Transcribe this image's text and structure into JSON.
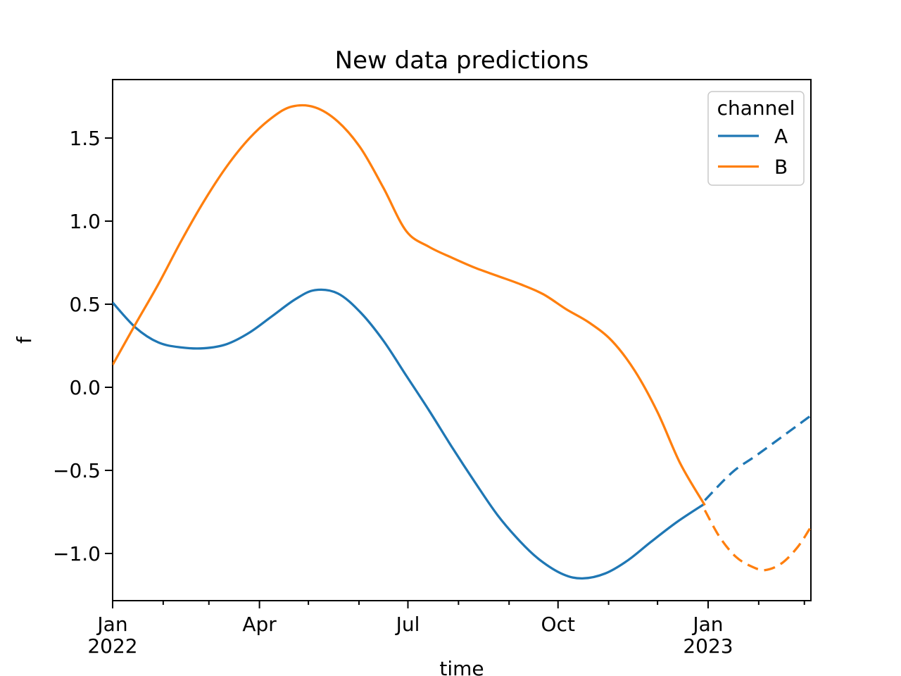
{
  "chart_data": {
    "type": "line",
    "title": "New data predictions",
    "xlabel": "time",
    "ylabel": "f",
    "grid": false,
    "x_unit": "days since Jan 1 2022",
    "xlim_days": [
      0,
      428
    ],
    "ylim": [
      -1.284,
      1.852
    ],
    "x_major_ticks": [
      {
        "day": 0,
        "lines": [
          "Jan",
          "2022"
        ]
      },
      {
        "day": 90,
        "lines": [
          "Apr"
        ]
      },
      {
        "day": 181,
        "lines": [
          "Jul"
        ]
      },
      {
        "day": 273,
        "lines": [
          "Oct"
        ]
      },
      {
        "day": 365,
        "lines": [
          "Jan",
          "2023"
        ]
      }
    ],
    "x_minor_tick_days": [
      31,
      59,
      120,
      151,
      212,
      243,
      304,
      334,
      396,
      424
    ],
    "y_ticks": [
      {
        "value": 1.5,
        "label": "1.5"
      },
      {
        "value": 1.0,
        "label": "1.0"
      },
      {
        "value": 0.5,
        "label": "0.5"
      },
      {
        "value": 0.0,
        "label": "0.0"
      },
      {
        "value": -0.5,
        "label": "−0.5"
      },
      {
        "value": -1.0,
        "label": "−1.0"
      }
    ],
    "legend": {
      "title": "channel",
      "position": "upper right",
      "entries": [
        {
          "label": "A",
          "color": "#1f77b4"
        },
        {
          "label": "B",
          "color": "#ff7f0e"
        }
      ]
    },
    "series": [
      {
        "name": "A",
        "color": "#1f77b4",
        "style": "solid",
        "points": [
          [
            0,
            0.51
          ],
          [
            14,
            0.36
          ],
          [
            28,
            0.27
          ],
          [
            42,
            0.24
          ],
          [
            56,
            0.235
          ],
          [
            70,
            0.26
          ],
          [
            84,
            0.33
          ],
          [
            98,
            0.43
          ],
          [
            112,
            0.53
          ],
          [
            124,
            0.585
          ],
          [
            138,
            0.565
          ],
          [
            152,
            0.45
          ],
          [
            166,
            0.28
          ],
          [
            180,
            0.07
          ],
          [
            194,
            -0.14
          ],
          [
            208,
            -0.36
          ],
          [
            222,
            -0.57
          ],
          [
            236,
            -0.77
          ],
          [
            250,
            -0.93
          ],
          [
            262,
            -1.04
          ],
          [
            276,
            -1.125
          ],
          [
            288,
            -1.15
          ],
          [
            302,
            -1.12
          ],
          [
            316,
            -1.04
          ],
          [
            330,
            -0.93
          ],
          [
            346,
            -0.81
          ],
          [
            363,
            -0.7
          ]
        ]
      },
      {
        "name": "A (dashed)",
        "color": "#1f77b4",
        "style": "dashed",
        "points": [
          [
            363,
            -0.68
          ],
          [
            380,
            -0.51
          ],
          [
            396,
            -0.4
          ],
          [
            428,
            -0.17
          ]
        ]
      },
      {
        "name": "B",
        "color": "#ff7f0e",
        "style": "solid",
        "points": [
          [
            0,
            0.135
          ],
          [
            14,
            0.38
          ],
          [
            28,
            0.62
          ],
          [
            42,
            0.88
          ],
          [
            56,
            1.12
          ],
          [
            70,
            1.33
          ],
          [
            84,
            1.5
          ],
          [
            98,
            1.625
          ],
          [
            110,
            1.69
          ],
          [
            124,
            1.685
          ],
          [
            138,
            1.6
          ],
          [
            152,
            1.44
          ],
          [
            166,
            1.2
          ],
          [
            180,
            0.94
          ],
          [
            194,
            0.845
          ],
          [
            208,
            0.78
          ],
          [
            222,
            0.72
          ],
          [
            236,
            0.67
          ],
          [
            250,
            0.62
          ],
          [
            264,
            0.56
          ],
          [
            278,
            0.47
          ],
          [
            292,
            0.39
          ],
          [
            306,
            0.28
          ],
          [
            320,
            0.1
          ],
          [
            334,
            -0.15
          ],
          [
            348,
            -0.46
          ],
          [
            363,
            -0.71
          ]
        ]
      },
      {
        "name": "B (dashed)",
        "color": "#ff7f0e",
        "style": "dashed",
        "points": [
          [
            363,
            -0.74
          ],
          [
            372,
            -0.9
          ],
          [
            382,
            -1.02
          ],
          [
            392,
            -1.08
          ],
          [
            400,
            -1.1
          ],
          [
            410,
            -1.06
          ],
          [
            420,
            -0.96
          ],
          [
            428,
            -0.84
          ]
        ]
      }
    ]
  }
}
